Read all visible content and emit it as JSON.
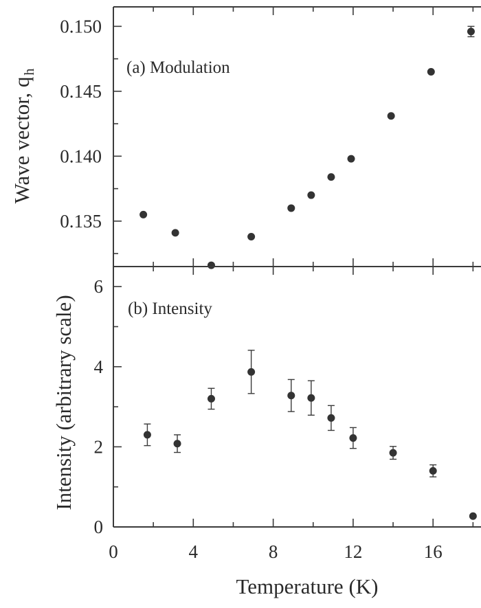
{
  "chart_data": [
    {
      "type": "scatter",
      "panel": "a",
      "annotation": "(a) Modulation",
      "ylabel": "Wave vector, q",
      "ylabel_sub": "h",
      "xlim": [
        0,
        18.4
      ],
      "ylim": [
        0.1315,
        0.1515
      ],
      "yticks": [
        0.135,
        0.14,
        0.145,
        0.15
      ],
      "ytick_labels": [
        "0.135",
        "0.140",
        "0.145",
        "0.150"
      ],
      "series": [
        {
          "x": [
            1.5,
            3.1,
            4.9,
            6.9,
            8.9,
            9.9,
            10.9,
            11.9,
            13.9,
            15.9,
            17.9
          ],
          "y": [
            0.1355,
            0.1341,
            0.1316,
            0.1338,
            0.136,
            0.137,
            0.1384,
            0.1398,
            0.1431,
            0.1465,
            0.1496
          ],
          "err": [
            0,
            0,
            0,
            0,
            0,
            0,
            0,
            0,
            0,
            0,
            0.0004
          ]
        }
      ]
    },
    {
      "type": "scatter",
      "panel": "b",
      "annotation": "(b) Intensity",
      "xlabel": "Temperature (K)",
      "ylabel": "Intensity (arbitrary scale)",
      "xlim": [
        0,
        18.4
      ],
      "ylim": [
        0,
        6.5
      ],
      "xticks": [
        0,
        4,
        8,
        12,
        16
      ],
      "xtick_labels": [
        "0",
        "4",
        "8",
        "12",
        "16"
      ],
      "yticks": [
        0,
        2,
        4,
        6
      ],
      "ytick_labels": [
        "0",
        "2",
        "4",
        "6"
      ],
      "series": [
        {
          "x": [
            1.7,
            3.2,
            4.9,
            6.9,
            8.9,
            9.9,
            10.9,
            12.0,
            14.0,
            16.0,
            18.0
          ],
          "y": [
            2.3,
            2.08,
            3.2,
            3.87,
            3.28,
            3.22,
            2.72,
            2.22,
            1.85,
            1.4,
            0.27
          ],
          "err": [
            0.27,
            0.22,
            0.26,
            0.54,
            0.4,
            0.43,
            0.31,
            0.26,
            0.16,
            0.15,
            0
          ]
        }
      ]
    }
  ]
}
